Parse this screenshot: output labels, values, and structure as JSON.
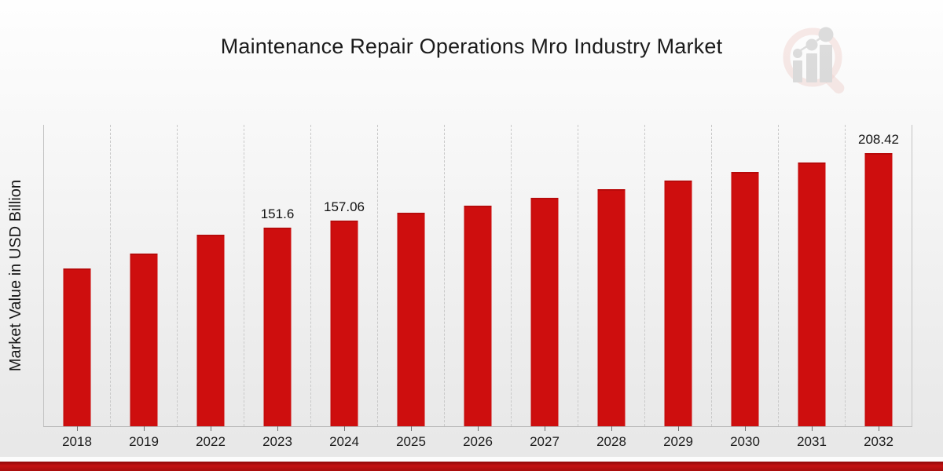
{
  "chart_data": {
    "type": "bar",
    "title": "Maintenance Repair Operations Mro Industry Market",
    "ylabel": "Market Value in USD Billion",
    "xlabel": "",
    "categories": [
      "2018",
      "2019",
      "2022",
      "2023",
      "2024",
      "2025",
      "2026",
      "2027",
      "2028",
      "2029",
      "2030",
      "2031",
      "2032"
    ],
    "values": [
      120.2,
      131.5,
      146.3,
      151.6,
      157.06,
      162.7,
      168.6,
      174.6,
      180.9,
      187.4,
      194.2,
      201.2,
      208.42
    ],
    "data_labels": [
      null,
      null,
      null,
      "151.6",
      "157.06",
      null,
      null,
      null,
      null,
      null,
      null,
      null,
      "208.42"
    ],
    "ylim": [
      0,
      230
    ],
    "grid": "vertical-dashed",
    "legend": "none",
    "bar_color": "#ce0e0e",
    "value_label_color": "#111111",
    "axis_color": "#c3c3c3"
  },
  "watermark": {
    "icon": "magnifier-bar-chart-logo",
    "ring_color": "#d98880",
    "figure_color": "#a0a0a0"
  },
  "footer": {
    "band_color": "#b01010"
  }
}
